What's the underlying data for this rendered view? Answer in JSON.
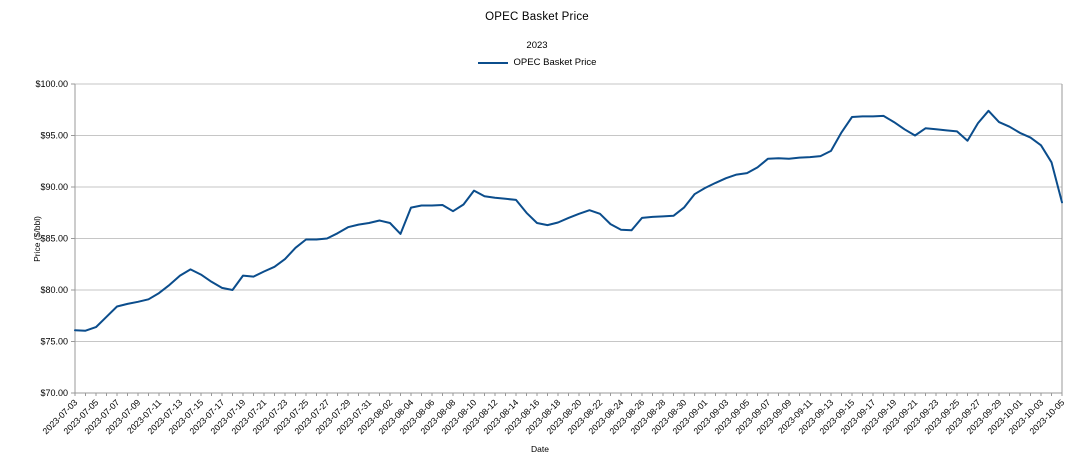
{
  "chart_data": {
    "type": "line",
    "title": "OPEC Basket Price",
    "subtitle": "2023",
    "xlabel": "Date",
    "ylabel": "Price ($/bbl)",
    "ylim": [
      70,
      100
    ],
    "y_tick_step": 5,
    "y_tick_prefix": "$",
    "x_label_every": 2,
    "grid": true,
    "legend_position": "top-center",
    "x": [
      "2023-07-03",
      "2023-07-04",
      "2023-07-05",
      "2023-07-06",
      "2023-07-07",
      "2023-07-08",
      "2023-07-09",
      "2023-07-10",
      "2023-07-11",
      "2023-07-12",
      "2023-07-13",
      "2023-07-14",
      "2023-07-15",
      "2023-07-16",
      "2023-07-17",
      "2023-07-18",
      "2023-07-19",
      "2023-07-20",
      "2023-07-21",
      "2023-07-22",
      "2023-07-23",
      "2023-07-24",
      "2023-07-25",
      "2023-07-26",
      "2023-07-27",
      "2023-07-28",
      "2023-07-29",
      "2023-07-30",
      "2023-07-31",
      "2023-08-01",
      "2023-08-02",
      "2023-08-03",
      "2023-08-04",
      "2023-08-05",
      "2023-08-06",
      "2023-08-07",
      "2023-08-08",
      "2023-08-09",
      "2023-08-10",
      "2023-08-11",
      "2023-08-12",
      "2023-08-13",
      "2023-08-14",
      "2023-08-15",
      "2023-08-16",
      "2023-08-17",
      "2023-08-18",
      "2023-08-19",
      "2023-08-20",
      "2023-08-21",
      "2023-08-22",
      "2023-08-23",
      "2023-08-24",
      "2023-08-25",
      "2023-08-26",
      "2023-08-27",
      "2023-08-28",
      "2023-08-29",
      "2023-08-30",
      "2023-08-31",
      "2023-09-01",
      "2023-09-02",
      "2023-09-03",
      "2023-09-04",
      "2023-09-05",
      "2023-09-06",
      "2023-09-07",
      "2023-09-08",
      "2023-09-09",
      "2023-09-10",
      "2023-09-11",
      "2023-09-12",
      "2023-09-13",
      "2023-09-14",
      "2023-09-15",
      "2023-09-16",
      "2023-09-17",
      "2023-09-18",
      "2023-09-19",
      "2023-09-20",
      "2023-09-21",
      "2023-09-22",
      "2023-09-23",
      "2023-09-24",
      "2023-09-25",
      "2023-09-26",
      "2023-09-27",
      "2023-09-28",
      "2023-09-29",
      "2023-09-30",
      "2023-10-01",
      "2023-10-02",
      "2023-10-03",
      "2023-10-04",
      "2023-10-05"
    ],
    "series": [
      {
        "name": "OPEC Basket Price",
        "color": "#0b4d8c",
        "values": [
          76.1,
          76.05,
          76.4,
          77.4,
          78.4,
          78.65,
          78.85,
          79.1,
          79.7,
          80.5,
          81.4,
          82.0,
          81.5,
          80.8,
          80.2,
          80.0,
          81.4,
          81.3,
          81.8,
          82.25,
          83.0,
          84.1,
          84.9,
          84.9,
          85.0,
          85.5,
          86.1,
          86.35,
          86.5,
          86.75,
          86.5,
          85.45,
          88.0,
          88.2,
          88.2,
          88.25,
          87.65,
          88.3,
          89.65,
          89.1,
          88.95,
          88.85,
          88.75,
          87.5,
          86.5,
          86.3,
          86.55,
          87.0,
          87.4,
          87.75,
          87.4,
          86.4,
          85.85,
          85.8,
          87.0,
          87.1,
          87.15,
          87.2,
          88.0,
          89.3,
          89.9,
          90.4,
          90.85,
          91.2,
          91.35,
          91.9,
          92.75,
          92.8,
          92.75,
          92.85,
          92.9,
          93.0,
          93.5,
          95.3,
          96.8,
          96.85,
          96.85,
          96.9,
          96.3,
          95.6,
          95.0,
          95.7,
          95.6,
          95.5,
          95.4,
          94.5,
          96.2,
          97.4,
          96.3,
          95.85,
          95.25,
          94.8,
          94.05,
          92.4,
          88.5
        ]
      }
    ]
  },
  "colors": {
    "line": "#0b4d8c",
    "grid": "#c6c6c6",
    "axis": "#999999",
    "text": "#000000",
    "background": "#ffffff"
  }
}
